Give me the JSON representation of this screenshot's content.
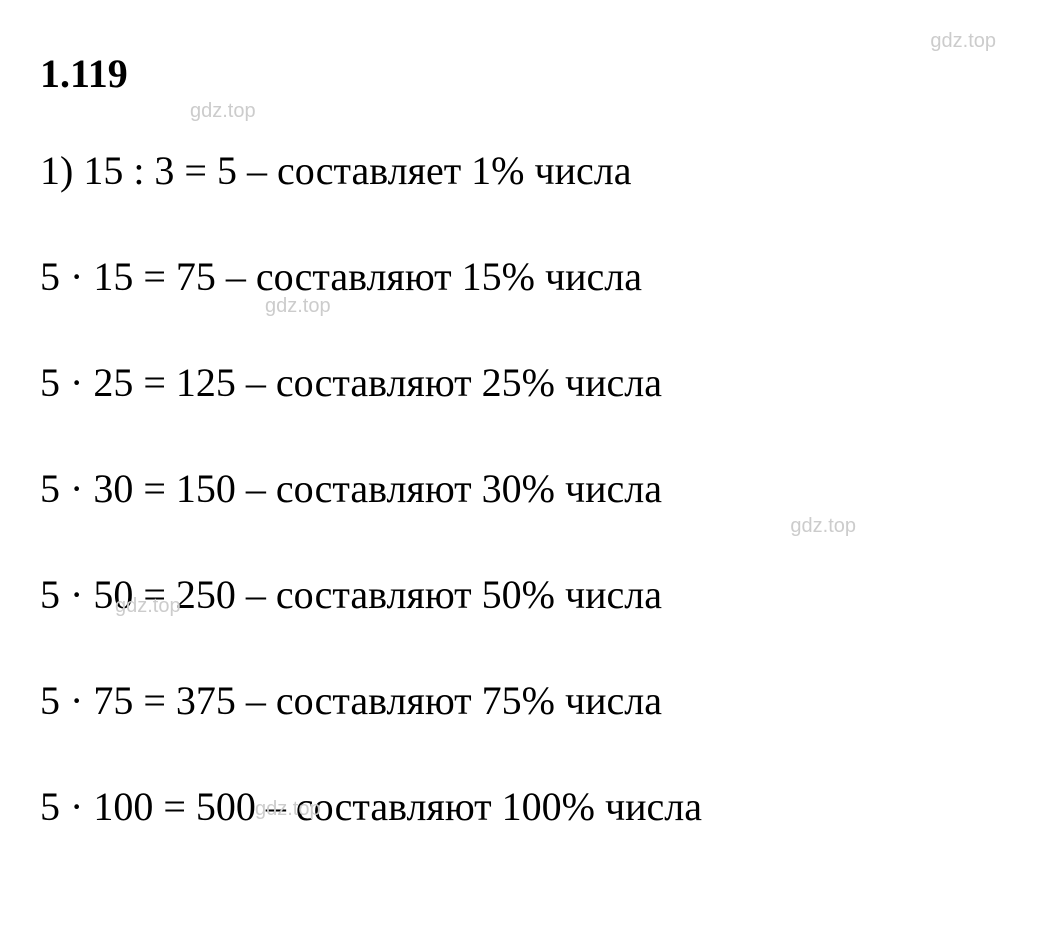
{
  "problem": {
    "number": "1.119"
  },
  "lines": [
    "1) 15 : 3 = 5 – составляет 1% числа",
    "5 · 15 = 75 – составляют 15% числа",
    "5 · 25 = 125 – составляют 25% числа",
    "5 · 30 = 150 – составляют 30% числа",
    "5 · 50 = 250 – составляют 50% числа",
    "5 · 75 = 375 – составляют 75% числа",
    "5 · 100 = 500 – составляют 100% числа"
  ],
  "watermark": {
    "text": "gdz.top",
    "color": "#cccccc",
    "fontsize": 20
  },
  "styling": {
    "background_color": "#ffffff",
    "text_color": "#000000",
    "problem_number_fontsize": 40,
    "problem_number_fontweight": "bold",
    "line_fontsize": 40,
    "line_spacing": 58,
    "font_family": "Georgia, Times New Roman, serif"
  }
}
